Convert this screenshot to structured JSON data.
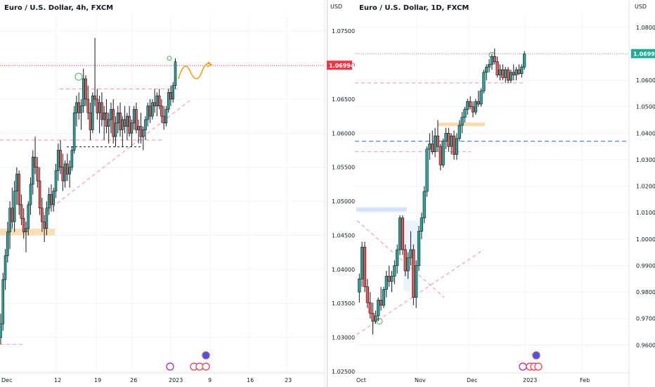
{
  "chart_data": [
    {
      "type": "candlestick",
      "title": "Euro / U.S. Dollar, 4h, FXCM",
      "symbol": "EURUSD",
      "timeframe": "4h",
      "broker": "FXCM",
      "currency_label": "USD",
      "ylim": [
        1.025,
        1.0775
      ],
      "yticks": [
        "1.07500",
        "1.07000",
        "1.06500",
        "1.06000",
        "1.05500",
        "1.05000",
        "1.04500",
        "1.04000",
        "1.03500",
        "1.03000",
        "1.02500"
      ],
      "xticks": [
        "Dec",
        "12",
        "19",
        "26",
        "2023",
        "9",
        "16",
        "23"
      ],
      "last_price": "1.06994",
      "candles": [
        {
          "o": 1.03,
          "h": 1.0335,
          "l": 1.029,
          "c": 1.032
        },
        {
          "o": 1.032,
          "h": 1.0395,
          "l": 1.031,
          "c": 1.0385
        },
        {
          "o": 1.0385,
          "h": 1.043,
          "l": 1.037,
          "c": 1.042
        },
        {
          "o": 1.042,
          "h": 1.047,
          "l": 1.041,
          "c": 1.0455
        },
        {
          "o": 1.0455,
          "h": 1.05,
          "l": 1.043,
          "c": 1.049
        },
        {
          "o": 1.049,
          "h": 1.052,
          "l": 1.046,
          "c": 1.047
        },
        {
          "o": 1.047,
          "h": 1.053,
          "l": 1.0455,
          "c": 1.0515
        },
        {
          "o": 1.0515,
          "h": 1.055,
          "l": 1.0495,
          "c": 1.054
        },
        {
          "o": 1.054,
          "h": 1.0545,
          "l": 1.048,
          "c": 1.0495
        },
        {
          "o": 1.0495,
          "h": 1.051,
          "l": 1.0465,
          "c": 1.0475
        },
        {
          "o": 1.0475,
          "h": 1.049,
          "l": 1.0445,
          "c": 1.0455
        },
        {
          "o": 1.0455,
          "h": 1.047,
          "l": 1.0425,
          "c": 1.046
        },
        {
          "o": 1.046,
          "h": 1.05,
          "l": 1.045,
          "c": 1.0495
        },
        {
          "o": 1.0495,
          "h": 1.0535,
          "l": 1.048,
          "c": 1.0525
        },
        {
          "o": 1.0525,
          "h": 1.0575,
          "l": 1.051,
          "c": 1.0565
        },
        {
          "o": 1.0565,
          "h": 1.0595,
          "l": 1.054,
          "c": 1.055
        },
        {
          "o": 1.055,
          "h": 1.0565,
          "l": 1.052,
          "c": 1.053
        },
        {
          "o": 1.053,
          "h": 1.055,
          "l": 1.048,
          "c": 1.049
        },
        {
          "o": 1.049,
          "h": 1.0505,
          "l": 1.0455,
          "c": 1.047
        },
        {
          "o": 1.047,
          "h": 1.048,
          "l": 1.044,
          "c": 1.046
        },
        {
          "o": 1.046,
          "h": 1.05,
          "l": 1.045,
          "c": 1.049
        },
        {
          "o": 1.049,
          "h": 1.052,
          "l": 1.048,
          "c": 1.051
        },
        {
          "o": 1.051,
          "h": 1.0525,
          "l": 1.0485,
          "c": 1.0495
        },
        {
          "o": 1.0495,
          "h": 1.052,
          "l": 1.0485,
          "c": 1.0515
        },
        {
          "o": 1.0515,
          "h": 1.0555,
          "l": 1.0505,
          "c": 1.0545
        },
        {
          "o": 1.0545,
          "h": 1.0585,
          "l": 1.053,
          "c": 1.0575
        },
        {
          "o": 1.0575,
          "h": 1.059,
          "l": 1.054,
          "c": 1.055
        },
        {
          "o": 1.055,
          "h": 1.057,
          "l": 1.0515,
          "c": 1.053
        },
        {
          "o": 1.053,
          "h": 1.056,
          "l": 1.052,
          "c": 1.0555
        },
        {
          "o": 1.0555,
          "h": 1.057,
          "l": 1.053,
          "c": 1.054
        },
        {
          "o": 1.054,
          "h": 1.056,
          "l": 1.052,
          "c": 1.055
        },
        {
          "o": 1.055,
          "h": 1.058,
          "l": 1.0545,
          "c": 1.0575
        },
        {
          "o": 1.0575,
          "h": 1.064,
          "l": 1.057,
          "c": 1.063
        },
        {
          "o": 1.063,
          "h": 1.0655,
          "l": 1.061,
          "c": 1.0645
        },
        {
          "o": 1.0645,
          "h": 1.066,
          "l": 1.062,
          "c": 1.063
        },
        {
          "o": 1.063,
          "h": 1.065,
          "l": 1.0605,
          "c": 1.064
        },
        {
          "o": 1.064,
          "h": 1.0695,
          "l": 1.063,
          "c": 1.068
        },
        {
          "o": 1.068,
          "h": 1.0685,
          "l": 1.064,
          "c": 1.065
        },
        {
          "o": 1.065,
          "h": 1.067,
          "l": 1.062,
          "c": 1.063
        },
        {
          "o": 1.063,
          "h": 1.0645,
          "l": 1.059,
          "c": 1.0605
        },
        {
          "o": 1.0605,
          "h": 1.066,
          "l": 1.06,
          "c": 1.0655
        },
        {
          "o": 1.0655,
          "h": 1.074,
          "l": 1.064,
          "c": 1.065
        },
        {
          "o": 1.065,
          "h": 1.0665,
          "l": 1.062,
          "c": 1.063
        },
        {
          "o": 1.063,
          "h": 1.0655,
          "l": 1.06,
          "c": 1.0645
        },
        {
          "o": 1.0645,
          "h": 1.066,
          "l": 1.061,
          "c": 1.062
        },
        {
          "o": 1.062,
          "h": 1.064,
          "l": 1.059,
          "c": 1.063
        },
        {
          "o": 1.063,
          "h": 1.065,
          "l": 1.06,
          "c": 1.061
        },
        {
          "o": 1.061,
          "h": 1.063,
          "l": 1.0585,
          "c": 1.062
        },
        {
          "o": 1.062,
          "h": 1.0645,
          "l": 1.06,
          "c": 1.0635
        },
        {
          "o": 1.0635,
          "h": 1.065,
          "l": 1.0585,
          "c": 1.0595
        },
        {
          "o": 1.0595,
          "h": 1.0625,
          "l": 1.058,
          "c": 1.0615
        },
        {
          "o": 1.0615,
          "h": 1.064,
          "l": 1.06,
          "c": 1.063
        },
        {
          "o": 1.063,
          "h": 1.0645,
          "l": 1.0595,
          "c": 1.0605
        },
        {
          "o": 1.0605,
          "h": 1.0625,
          "l": 1.058,
          "c": 1.062
        },
        {
          "o": 1.062,
          "h": 1.064,
          "l": 1.06,
          "c": 1.061
        },
        {
          "o": 1.061,
          "h": 1.063,
          "l": 1.059,
          "c": 1.0625
        },
        {
          "o": 1.0625,
          "h": 1.064,
          "l": 1.0595,
          "c": 1.06
        },
        {
          "o": 1.06,
          "h": 1.062,
          "l": 1.058,
          "c": 1.0615
        },
        {
          "o": 1.0615,
          "h": 1.064,
          "l": 1.0605,
          "c": 1.0635
        },
        {
          "o": 1.0635,
          "h": 1.0645,
          "l": 1.06,
          "c": 1.0605
        },
        {
          "o": 1.0605,
          "h": 1.062,
          "l": 1.0585,
          "c": 1.061
        },
        {
          "o": 1.061,
          "h": 1.063,
          "l": 1.0585,
          "c": 1.0595
        },
        {
          "o": 1.0595,
          "h": 1.061,
          "l": 1.0575,
          "c": 1.0605
        },
        {
          "o": 1.0605,
          "h": 1.0625,
          "l": 1.059,
          "c": 1.062
        },
        {
          "o": 1.062,
          "h": 1.0645,
          "l": 1.061,
          "c": 1.064
        },
        {
          "o": 1.064,
          "h": 1.065,
          "l": 1.0615,
          "c": 1.0625
        },
        {
          "o": 1.0625,
          "h": 1.065,
          "l": 1.062,
          "c": 1.0645
        },
        {
          "o": 1.0645,
          "h": 1.0665,
          "l": 1.063,
          "c": 1.064
        },
        {
          "o": 1.064,
          "h": 1.066,
          "l": 1.0625,
          "c": 1.0655
        },
        {
          "o": 1.0655,
          "h": 1.0665,
          "l": 1.0635,
          "c": 1.064
        },
        {
          "o": 1.064,
          "h": 1.065,
          "l": 1.0615,
          "c": 1.0625
        },
        {
          "o": 1.0625,
          "h": 1.064,
          "l": 1.0605,
          "c": 1.0615
        },
        {
          "o": 1.0615,
          "h": 1.064,
          "l": 1.061,
          "c": 1.0635
        },
        {
          "o": 1.0635,
          "h": 1.0665,
          "l": 1.063,
          "c": 1.066
        },
        {
          "o": 1.066,
          "h": 1.067,
          "l": 1.064,
          "c": 1.065
        },
        {
          "o": 1.065,
          "h": 1.0675,
          "l": 1.0645,
          "c": 1.067
        },
        {
          "o": 1.067,
          "h": 1.071,
          "l": 1.0665,
          "c": 1.0705
        }
      ],
      "annotations": {
        "red_dotted_level": 1.06994,
        "pink_dashed_levels": [
          1.0665,
          1.059,
          1.029
        ],
        "black_dashed_level": 1.058,
        "orange_zone": [
          1.045,
          1.046
        ]
      }
    },
    {
      "type": "candlestick",
      "title": "Euro / U.S. Dollar, 1D, FXCM",
      "symbol": "EURUSD",
      "timeframe": "1D",
      "broker": "FXCM",
      "currency_label": "USD",
      "ylim": [
        0.95,
        1.085
      ],
      "yticks": [
        "1.08000",
        "1.07000",
        "1.06000",
        "1.05000",
        "1.04000",
        "1.03000",
        "1.02000",
        "1.01000",
        "1.00000",
        "0.99000",
        "0.98000",
        "0.97000",
        "0.96000"
      ],
      "xticks": [
        "Oct",
        "Nov",
        "Dec",
        "2023",
        "Feb"
      ],
      "last_price": "1.06994",
      "candles": [
        {
          "o": 0.98,
          "h": 0.987,
          "l": 0.976,
          "c": 0.985
        },
        {
          "o": 0.985,
          "h": 0.999,
          "l": 0.982,
          "c": 0.997
        },
        {
          "o": 0.997,
          "h": 0.999,
          "l": 0.98,
          "c": 0.982
        },
        {
          "o": 0.982,
          "h": 0.985,
          "l": 0.974,
          "c": 0.976
        },
        {
          "o": 0.976,
          "h": 0.98,
          "l": 0.97,
          "c": 0.972
        },
        {
          "o": 0.972,
          "h": 0.976,
          "l": 0.964,
          "c": 0.969
        },
        {
          "o": 0.969,
          "h": 0.973,
          "l": 0.968,
          "c": 0.971
        },
        {
          "o": 0.971,
          "h": 0.978,
          "l": 0.969,
          "c": 0.977
        },
        {
          "o": 0.977,
          "h": 0.982,
          "l": 0.973,
          "c": 0.975
        },
        {
          "o": 0.975,
          "h": 0.982,
          "l": 0.974,
          "c": 0.981
        },
        {
          "o": 0.981,
          "h": 0.988,
          "l": 0.978,
          "c": 0.986
        },
        {
          "o": 0.986,
          "h": 0.99,
          "l": 0.982,
          "c": 0.984
        },
        {
          "o": 0.984,
          "h": 0.988,
          "l": 0.98,
          "c": 0.986
        },
        {
          "o": 0.986,
          "h": 0.992,
          "l": 0.983,
          "c": 0.99
        },
        {
          "o": 0.99,
          "h": 0.998,
          "l": 0.987,
          "c": 0.996
        },
        {
          "o": 0.996,
          "h": 1.009,
          "l": 0.994,
          "c": 1.008
        },
        {
          "o": 1.008,
          "h": 1.009,
          "l": 0.994,
          "c": 0.996
        },
        {
          "o": 0.996,
          "h": 0.998,
          "l": 0.986,
          "c": 0.988
        },
        {
          "o": 0.988,
          "h": 0.995,
          "l": 0.985,
          "c": 0.993
        },
        {
          "o": 0.993,
          "h": 1.003,
          "l": 0.99,
          "c": 0.996
        },
        {
          "o": 0.996,
          "h": 0.998,
          "l": 0.975,
          "c": 0.978
        },
        {
          "o": 0.978,
          "h": 0.992,
          "l": 0.974,
          "c": 0.99
        },
        {
          "o": 0.99,
          "h": 1.005,
          "l": 0.988,
          "c": 1.003
        },
        {
          "o": 1.003,
          "h": 1.01,
          "l": 1.0,
          "c": 1.008
        },
        {
          "o": 1.008,
          "h": 1.02,
          "l": 1.006,
          "c": 1.018
        },
        {
          "o": 1.018,
          "h": 1.035,
          "l": 1.016,
          "c": 1.034
        },
        {
          "o": 1.034,
          "h": 1.04,
          "l": 1.03,
          "c": 1.036
        },
        {
          "o": 1.036,
          "h": 1.041,
          "l": 1.032,
          "c": 1.033
        },
        {
          "o": 1.033,
          "h": 1.042,
          "l": 1.031,
          "c": 1.039
        },
        {
          "o": 1.039,
          "h": 1.045,
          "l": 1.033,
          "c": 1.035
        },
        {
          "o": 1.035,
          "h": 1.036,
          "l": 1.026,
          "c": 1.028
        },
        {
          "o": 1.028,
          "h": 1.038,
          "l": 1.027,
          "c": 1.037
        },
        {
          "o": 1.037,
          "h": 1.042,
          "l": 1.034,
          "c": 1.04
        },
        {
          "o": 1.04,
          "h": 1.042,
          "l": 1.033,
          "c": 1.035
        },
        {
          "o": 1.035,
          "h": 1.04,
          "l": 1.032,
          "c": 1.039
        },
        {
          "o": 1.039,
          "h": 1.041,
          "l": 1.03,
          "c": 1.032
        },
        {
          "o": 1.032,
          "h": 1.04,
          "l": 1.03,
          "c": 1.038
        },
        {
          "o": 1.038,
          "h": 1.045,
          "l": 1.037,
          "c": 1.043
        },
        {
          "o": 1.043,
          "h": 1.048,
          "l": 1.04,
          "c": 1.046
        },
        {
          "o": 1.046,
          "h": 1.05,
          "l": 1.044,
          "c": 1.049
        },
        {
          "o": 1.049,
          "h": 1.053,
          "l": 1.047,
          "c": 1.052
        },
        {
          "o": 1.052,
          "h": 1.054,
          "l": 1.049,
          "c": 1.05
        },
        {
          "o": 1.05,
          "h": 1.052,
          "l": 1.046,
          "c": 1.048
        },
        {
          "o": 1.048,
          "h": 1.053,
          "l": 1.047,
          "c": 1.052
        },
        {
          "o": 1.052,
          "h": 1.056,
          "l": 1.05,
          "c": 1.051
        },
        {
          "o": 1.051,
          "h": 1.057,
          "l": 1.05,
          "c": 1.056
        },
        {
          "o": 1.056,
          "h": 1.064,
          "l": 1.055,
          "c": 1.063
        },
        {
          "o": 1.063,
          "h": 1.066,
          "l": 1.06,
          "c": 1.065
        },
        {
          "o": 1.065,
          "h": 1.068,
          "l": 1.063,
          "c": 1.066
        },
        {
          "o": 1.066,
          "h": 1.07,
          "l": 1.064,
          "c": 1.069
        },
        {
          "o": 1.069,
          "h": 1.072,
          "l": 1.066,
          "c": 1.067
        },
        {
          "o": 1.067,
          "h": 1.069,
          "l": 1.061,
          "c": 1.062
        },
        {
          "o": 1.062,
          "h": 1.066,
          "l": 1.06,
          "c": 1.064
        },
        {
          "o": 1.064,
          "h": 1.066,
          "l": 1.06,
          "c": 1.061
        },
        {
          "o": 1.061,
          "h": 1.065,
          "l": 1.059,
          "c": 1.064
        },
        {
          "o": 1.064,
          "h": 1.065,
          "l": 1.059,
          "c": 1.06
        },
        {
          "o": 1.06,
          "h": 1.064,
          "l": 1.059,
          "c": 1.063
        },
        {
          "o": 1.063,
          "h": 1.066,
          "l": 1.06,
          "c": 1.062
        },
        {
          "o": 1.062,
          "h": 1.065,
          "l": 1.06,
          "c": 1.064
        },
        {
          "o": 1.064,
          "h": 1.066,
          "l": 1.062,
          "c": 1.0625
        },
        {
          "o": 1.0625,
          "h": 1.066,
          "l": 1.061,
          "c": 1.065
        },
        {
          "o": 1.065,
          "h": 1.071,
          "l": 1.064,
          "c": 1.0699
        }
      ],
      "annotations": {
        "green_dotted_level": 1.06994,
        "blue_dashed_level": 1.037,
        "pink_dashed_levels": [
          1.059,
          1.033
        ],
        "orange_zone": [
          1.043,
          1.044
        ],
        "blue_zone": [
          1.01,
          1.012
        ]
      }
    }
  ]
}
